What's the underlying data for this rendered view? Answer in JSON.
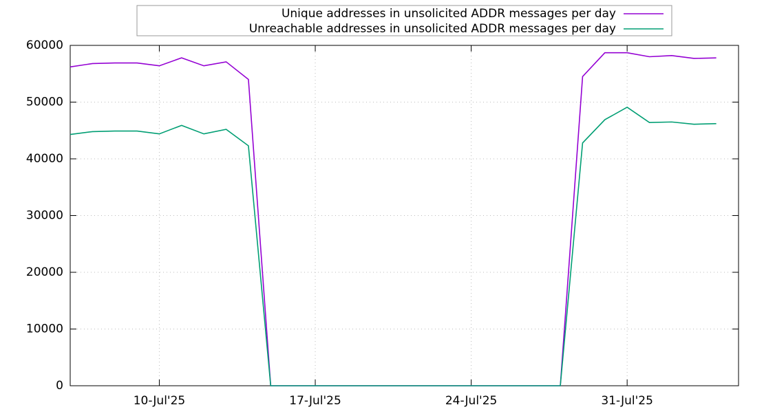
{
  "chart_data": {
    "type": "line",
    "x": [
      "06-Jul'25",
      "07-Jul'25",
      "08-Jul'25",
      "09-Jul'25",
      "10-Jul'25",
      "11-Jul'25",
      "12-Jul'25",
      "13-Jul'25",
      "14-Jul'25",
      "15-Jul'25",
      "16-Jul'25",
      "17-Jul'25",
      "18-Jul'25",
      "19-Jul'25",
      "20-Jul'25",
      "21-Jul'25",
      "22-Jul'25",
      "23-Jul'25",
      "24-Jul'25",
      "25-Jul'25",
      "26-Jul'25",
      "27-Jul'25",
      "28-Jul'25",
      "29-Jul'25",
      "30-Jul'25",
      "31-Jul'25",
      "01-Aug'25",
      "02-Aug'25",
      "03-Aug'25",
      "04-Aug'25"
    ],
    "series": [
      {
        "name": "Unique addresses in unsolicited ADDR messages per day",
        "color": "#9400d3",
        "values": [
          56200,
          56800,
          56900,
          56900,
          56400,
          57800,
          56400,
          57100,
          54000,
          0,
          0,
          0,
          0,
          0,
          0,
          0,
          0,
          0,
          0,
          0,
          0,
          0,
          0,
          54500,
          58700,
          58700,
          58000,
          58200,
          57700,
          57800
        ]
      },
      {
        "name": "Unreachable addresses in unsolicited ADDR messages per day",
        "color": "#009e73",
        "values": [
          44300,
          44800,
          44900,
          44900,
          44400,
          45900,
          44400,
          45200,
          42300,
          0,
          0,
          0,
          0,
          0,
          0,
          0,
          0,
          0,
          0,
          0,
          0,
          0,
          0,
          42800,
          46900,
          49100,
          46400,
          46500,
          46100,
          46200
        ]
      }
    ],
    "xlim": [
      "06-Jul'25",
      "05-Aug'25"
    ],
    "xticks": [
      "10-Jul'25",
      "17-Jul'25",
      "24-Jul'25",
      "31-Jul'25"
    ],
    "ylim": [
      0,
      60000
    ],
    "yticks": [
      0,
      10000,
      20000,
      30000,
      40000,
      50000,
      60000
    ],
    "grid": true,
    "legend": "top"
  }
}
